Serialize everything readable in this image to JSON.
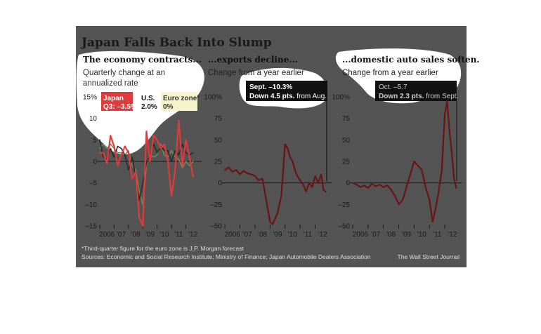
{
  "title": "Japan Falls Back Into Slump",
  "footnote": "*Third-quarter figure for the euro zone is J.P. Morgan forecast",
  "sources": "Sources: Economic and Social Research Institute; Ministry of Finance; Japan Automobile Dealers Association",
  "credit": "The Wall Street Journal",
  "colors": {
    "background": "#545454",
    "japan": "#e03a3a",
    "japan_dark": "#6b1414",
    "us": "#2b2b2b",
    "euro": "#6e8a5a",
    "highlight_white": "#ffffff",
    "zero_line": "#1a1a1a"
  },
  "panels": [
    {
      "heading": "The economy contracts...",
      "subtitle_line1": "Quarterly change at an",
      "subtitle_line2": "annualized rate",
      "legend": {
        "japan_name": "Japan",
        "japan_val": "Q3: –3.5%",
        "us_name": "U.S.",
        "us_val": "2.0%",
        "euro_name": "Euro zone*",
        "euro_val": "0%"
      }
    },
    {
      "heading": "...exports decline...",
      "subtitle_line1": "Change from a year earlier",
      "annotation_line1": "Sept. –10.3%",
      "annotation_line2_bold": "Down 4.5 pts.",
      "annotation_line2_rest": " from Aug."
    },
    {
      "heading": "...domestic auto sales soften.",
      "subtitle_line1": "Change from a year earlier",
      "annotation_line1": "Oct. –5.7",
      "annotation_line2_bold": "Down 2.3 pts.",
      "annotation_line2_rest": " from Sept."
    }
  ],
  "chart_data": [
    {
      "type": "line",
      "title": "The economy contracts...",
      "subtitle": "Quarterly change at an annualized rate",
      "xlim": [
        2006,
        2013
      ],
      "x_tick_labels": [
        "2006",
        "'07",
        "'08",
        "'09",
        "'10",
        "'11",
        "'12"
      ],
      "ylim": [
        -15,
        15
      ],
      "y_ticks": [
        15,
        10,
        5,
        0,
        -5,
        -10,
        -15
      ],
      "y_tick_labels": [
        "15%",
        "10",
        "5",
        "0",
        "–5",
        "–10",
        "–15"
      ],
      "grid": false,
      "series": [
        {
          "name": "Japan",
          "x": [
            2006.0,
            2006.25,
            2006.5,
            2006.75,
            2007.0,
            2007.25,
            2007.5,
            2007.75,
            2008.0,
            2008.25,
            2008.5,
            2008.75,
            2009.0,
            2009.25,
            2009.5,
            2009.75,
            2010.0,
            2010.25,
            2010.5,
            2010.75,
            2011.0,
            2011.25,
            2011.5,
            2011.75,
            2012.0,
            2012.25,
            2012.5
          ],
          "values": [
            2,
            2,
            -0.5,
            6,
            3.5,
            -1,
            1.5,
            3.5,
            2,
            -4,
            -2.5,
            -13,
            -15,
            7,
            0,
            6,
            5,
            3,
            4,
            0,
            -8,
            -2,
            9.5,
            -1,
            5,
            1,
            -3.5
          ]
        },
        {
          "name": "U.S.",
          "x": [
            2006.0,
            2006.25,
            2006.5,
            2006.75,
            2007.0,
            2007.25,
            2007.5,
            2007.75,
            2008.0,
            2008.25,
            2008.5,
            2008.75,
            2009.0,
            2009.25,
            2009.5,
            2009.75,
            2010.0,
            2010.25,
            2010.5,
            2010.75,
            2011.0,
            2011.25,
            2011.5,
            2011.75,
            2012.0,
            2012.25,
            2012.5
          ],
          "values": [
            5,
            1,
            0.5,
            3,
            1,
            3.5,
            3,
            1.5,
            -2,
            1,
            -3.5,
            -9,
            -5,
            -0.5,
            1.5,
            4,
            2,
            3.5,
            2.5,
            2.5,
            0,
            2.5,
            1.5,
            4,
            2,
            1.5,
            2
          ]
        },
        {
          "name": "Euro zone*",
          "x": [
            2006.0,
            2006.25,
            2006.5,
            2006.75,
            2007.0,
            2007.25,
            2007.5,
            2007.75,
            2008.0,
            2008.25,
            2008.5,
            2008.75,
            2009.0,
            2009.25,
            2009.5,
            2009.75,
            2010.0,
            2010.25,
            2010.5,
            2010.75,
            2011.0,
            2011.25,
            2011.5,
            2011.75,
            2012.0,
            2012.25,
            2012.5
          ],
          "values": [
            3,
            4,
            3,
            4,
            3,
            2,
            2,
            1.5,
            2.5,
            -1,
            -2,
            -7,
            -10,
            -1,
            1.5,
            1,
            1.5,
            4,
            1.5,
            1,
            2.5,
            1,
            0.5,
            -1.5,
            0,
            -1,
            0
          ]
        }
      ]
    },
    {
      "type": "line",
      "title": "...exports decline...",
      "subtitle": "Change from a year earlier",
      "xlim": [
        2006,
        2013
      ],
      "x_tick_labels": [
        "2006",
        "'07",
        "'08",
        "'09",
        "'10",
        "'11",
        "'12"
      ],
      "ylim": [
        -50,
        100
      ],
      "y_ticks": [
        100,
        75,
        50,
        25,
        0,
        -25,
        -50
      ],
      "y_tick_labels": [
        "100%",
        "75",
        "50",
        "25",
        "0",
        "–25",
        "–50"
      ],
      "grid": false,
      "series": [
        {
          "name": "Exports",
          "x": [
            2006.0,
            2006.25,
            2006.5,
            2006.75,
            2007.0,
            2007.25,
            2007.5,
            2007.75,
            2008.0,
            2008.25,
            2008.5,
            2008.75,
            2009.0,
            2009.17,
            2009.33,
            2009.5,
            2009.75,
            2010.0,
            2010.17,
            2010.33,
            2010.5,
            2010.75,
            2011.0,
            2011.2,
            2011.4,
            2011.6,
            2011.8,
            2012.0,
            2012.2,
            2012.4,
            2012.55,
            2012.7
          ],
          "values": [
            15,
            18,
            13,
            15,
            10,
            14,
            11,
            10,
            8,
            3,
            5,
            -20,
            -45,
            -48,
            -42,
            -35,
            -15,
            45,
            40,
            30,
            25,
            10,
            3,
            -2,
            -10,
            0,
            -5,
            8,
            0,
            10,
            -8,
            -10.3
          ]
        }
      ]
    },
    {
      "type": "line",
      "title": "...domestic auto sales soften.",
      "subtitle": "Change from a year earlier",
      "xlim": [
        2006,
        2013
      ],
      "x_tick_labels": [
        "2006",
        "'07",
        "'08",
        "'09",
        "'10",
        "'11",
        "'12"
      ],
      "ylim": [
        -50,
        100
      ],
      "y_ticks": [
        100,
        75,
        50,
        25,
        0,
        -25,
        -50
      ],
      "y_tick_labels": [
        "100%",
        "75",
        "50",
        "25",
        "0",
        "–25",
        "–50"
      ],
      "grid": false,
      "series": [
        {
          "name": "Auto sales",
          "x": [
            2006.0,
            2006.25,
            2006.5,
            2006.75,
            2007.0,
            2007.25,
            2007.5,
            2007.75,
            2008.0,
            2008.25,
            2008.5,
            2008.75,
            2009.0,
            2009.25,
            2009.5,
            2009.75,
            2010.0,
            2010.25,
            2010.5,
            2010.75,
            2011.0,
            2011.2,
            2011.4,
            2011.6,
            2011.8,
            2012.0,
            2012.15,
            2012.3,
            2012.45,
            2012.6,
            2012.75
          ],
          "values": [
            0,
            -2,
            -5,
            -3,
            -6,
            -1,
            -4,
            -2,
            -5,
            -3,
            -8,
            -15,
            -25,
            -20,
            -5,
            10,
            25,
            20,
            15,
            -5,
            -20,
            -45,
            -30,
            -10,
            15,
            80,
            95,
            60,
            35,
            5,
            -5.7
          ]
        }
      ]
    }
  ]
}
